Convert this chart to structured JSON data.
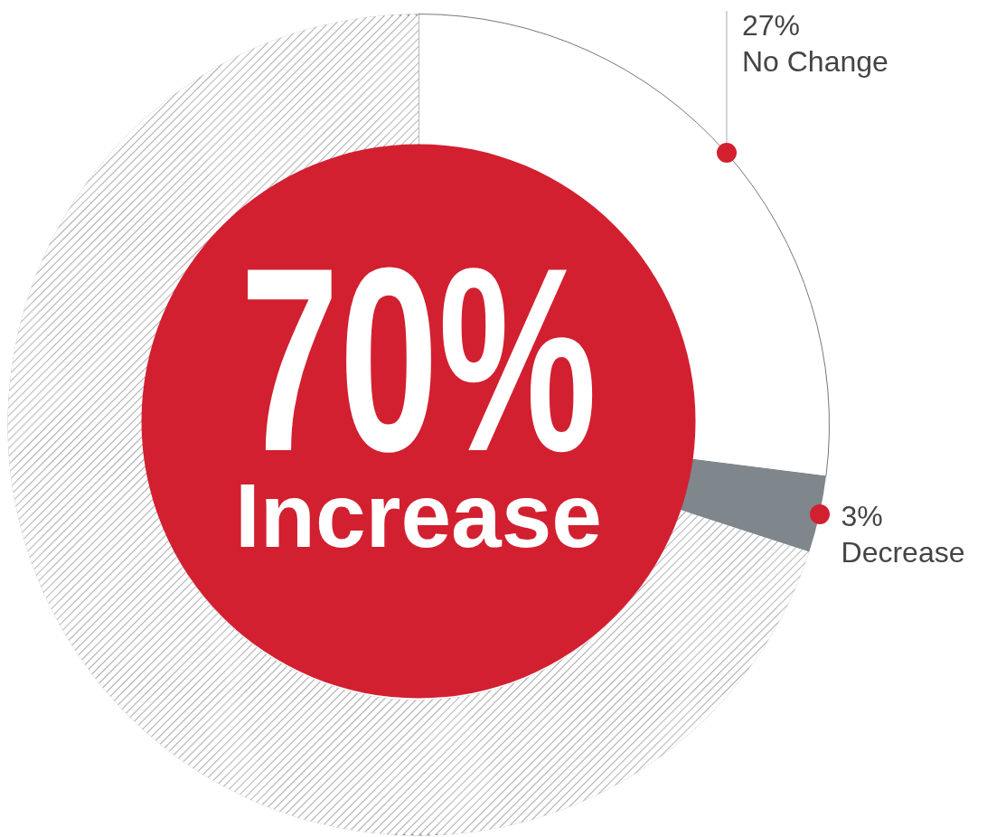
{
  "chart_data": {
    "type": "donut",
    "categories": [
      "No Change",
      "Decrease",
      "Increase"
    ],
    "values": [
      27,
      3,
      70
    ],
    "colors": [
      "#ffffff",
      "#7f868c",
      "#9a9a9a"
    ],
    "value_labels": [
      "27%",
      "3%",
      "70%"
    ],
    "legend": false
  }
}
